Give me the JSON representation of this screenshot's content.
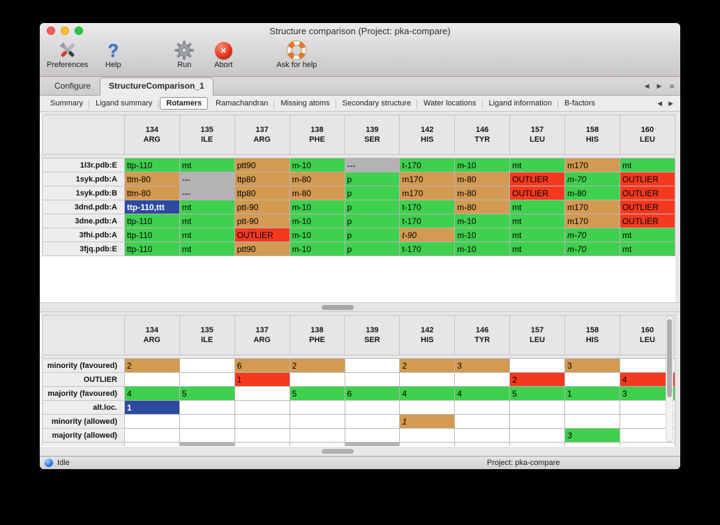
{
  "window": {
    "title": "Structure comparison (Project: pka-compare)"
  },
  "toolbar": {
    "items": [
      {
        "id": "preferences",
        "label": "Preferences"
      },
      {
        "id": "help",
        "label": "Help"
      },
      {
        "id": "run",
        "label": "Run"
      },
      {
        "id": "abort",
        "label": "Abort"
      },
      {
        "id": "ask-for-help",
        "label": "Ask for help"
      }
    ]
  },
  "tabs": {
    "items": [
      {
        "label": "Configure",
        "active": false
      },
      {
        "label": "StructureComparison_1",
        "active": true
      }
    ]
  },
  "tab_nav": {
    "prev": "◀",
    "next": "▶",
    "close": "×"
  },
  "subtabs": {
    "items": [
      {
        "label": "Summary",
        "active": false
      },
      {
        "label": "Ligand summary",
        "active": false
      },
      {
        "label": "Rotamers",
        "active": true
      },
      {
        "label": "Ramachandran",
        "active": false
      },
      {
        "label": "Missing atoms",
        "active": false
      },
      {
        "label": "Secondary structure",
        "active": false
      },
      {
        "label": "Water locations",
        "active": false
      },
      {
        "label": "Ligand information",
        "active": false
      },
      {
        "label": "B-factors",
        "active": false
      }
    ]
  },
  "colors": {
    "green": "#3fd04e",
    "orange": "#d39a51",
    "red": "#f5391f",
    "gray": "#b4b2b4",
    "blue": "#2c4a9e"
  },
  "columns": [
    {
      "num": "134",
      "res": "ARG"
    },
    {
      "num": "135",
      "res": "ILE"
    },
    {
      "num": "137",
      "res": "ARG"
    },
    {
      "num": "138",
      "res": "PHE"
    },
    {
      "num": "139",
      "res": "SER"
    },
    {
      "num": "142",
      "res": "HIS"
    },
    {
      "num": "146",
      "res": "TYR"
    },
    {
      "num": "157",
      "res": "LEU"
    },
    {
      "num": "158",
      "res": "HIS"
    },
    {
      "num": "160",
      "res": "LEU"
    }
  ],
  "top_table": {
    "rows": [
      {
        "label": "1l3r.pdb:E",
        "cells": [
          {
            "t": "ttp-110",
            "c": "green"
          },
          {
            "t": "mt",
            "c": "green"
          },
          {
            "t": "ptt90",
            "c": "orange"
          },
          {
            "t": "m-10",
            "c": "green"
          },
          {
            "t": "---",
            "c": "gray"
          },
          {
            "t": "t-170",
            "c": "green"
          },
          {
            "t": "m-10",
            "c": "green"
          },
          {
            "t": "mt",
            "c": "green"
          },
          {
            "t": "m170",
            "c": "orange"
          },
          {
            "t": "mt",
            "c": "green"
          }
        ]
      },
      {
        "label": "1syk.pdb:A",
        "cells": [
          {
            "t": "ttm-80",
            "c": "orange"
          },
          {
            "t": "---",
            "c": "gray"
          },
          {
            "t": "ttp80",
            "c": "orange"
          },
          {
            "t": "m-80",
            "c": "orange"
          },
          {
            "t": "p",
            "c": "green"
          },
          {
            "t": "m170",
            "c": "orange"
          },
          {
            "t": "m-80",
            "c": "orange"
          },
          {
            "t": "OUTLIER",
            "c": "red"
          },
          {
            "t": "m-70",
            "c": "green",
            "i": true
          },
          {
            "t": "OUTLIER",
            "c": "red"
          }
        ]
      },
      {
        "label": "1syk.pdb:B",
        "cells": [
          {
            "t": "ttm-80",
            "c": "orange"
          },
          {
            "t": "---",
            "c": "gray"
          },
          {
            "t": "ttp80",
            "c": "orange"
          },
          {
            "t": "m-80",
            "c": "orange"
          },
          {
            "t": "p",
            "c": "green"
          },
          {
            "t": "m170",
            "c": "orange"
          },
          {
            "t": "m-80",
            "c": "orange"
          },
          {
            "t": "OUTLIER",
            "c": "red"
          },
          {
            "t": "m-80",
            "c": "green"
          },
          {
            "t": "OUTLIER",
            "c": "red"
          }
        ]
      },
      {
        "label": "3dnd.pdb:A",
        "cells": [
          {
            "t": "ttp-110,ttt",
            "c": "blue"
          },
          {
            "t": "mt",
            "c": "green"
          },
          {
            "t": "ptt-90",
            "c": "orange"
          },
          {
            "t": "m-10",
            "c": "green"
          },
          {
            "t": "p",
            "c": "green"
          },
          {
            "t": "t-170",
            "c": "green"
          },
          {
            "t": "m-80",
            "c": "orange"
          },
          {
            "t": "mt",
            "c": "green"
          },
          {
            "t": "m170",
            "c": "orange"
          },
          {
            "t": "OUTLIER",
            "c": "red"
          }
        ]
      },
      {
        "label": "3dne.pdb:A",
        "cells": [
          {
            "t": "ttp-110",
            "c": "green"
          },
          {
            "t": "mt",
            "c": "green"
          },
          {
            "t": "ptt-90",
            "c": "orange"
          },
          {
            "t": "m-10",
            "c": "green"
          },
          {
            "t": "p",
            "c": "green"
          },
          {
            "t": "t-170",
            "c": "green"
          },
          {
            "t": "m-10",
            "c": "green"
          },
          {
            "t": "mt",
            "c": "green"
          },
          {
            "t": "m170",
            "c": "orange"
          },
          {
            "t": "OUTLIER",
            "c": "red"
          }
        ]
      },
      {
        "label": "3fhi.pdb:A",
        "cells": [
          {
            "t": "ttp-110",
            "c": "green"
          },
          {
            "t": "mt",
            "c": "green"
          },
          {
            "t": "OUTLIER",
            "c": "red"
          },
          {
            "t": "m-10",
            "c": "green"
          },
          {
            "t": "p",
            "c": "green"
          },
          {
            "t": "t-90",
            "c": "orange",
            "i": true
          },
          {
            "t": "m-10",
            "c": "green"
          },
          {
            "t": "mt",
            "c": "green"
          },
          {
            "t": "m-70",
            "c": "green",
            "i": true
          },
          {
            "t": "mt",
            "c": "green"
          }
        ]
      },
      {
        "label": "3fjq.pdb:E",
        "cells": [
          {
            "t": "ttp-110",
            "c": "green"
          },
          {
            "t": "mt",
            "c": "green"
          },
          {
            "t": "ptt90",
            "c": "orange"
          },
          {
            "t": "m-10",
            "c": "green"
          },
          {
            "t": "p",
            "c": "green"
          },
          {
            "t": "t-170",
            "c": "green"
          },
          {
            "t": "m-10",
            "c": "green"
          },
          {
            "t": "mt",
            "c": "green"
          },
          {
            "t": "m-70",
            "c": "green",
            "i": true
          },
          {
            "t": "mt",
            "c": "green"
          }
        ]
      }
    ]
  },
  "bottom_table": {
    "rows": [
      {
        "label": "minority (favoured)",
        "cells": [
          {
            "t": "2",
            "c": "orange"
          },
          {
            "t": "",
            "c": ""
          },
          {
            "t": "6",
            "c": "orange"
          },
          {
            "t": "2",
            "c": "orange"
          },
          {
            "t": "",
            "c": ""
          },
          {
            "t": "2",
            "c": "orange"
          },
          {
            "t": "3",
            "c": "orange"
          },
          {
            "t": "",
            "c": ""
          },
          {
            "t": "3",
            "c": "orange"
          },
          {
            "t": "",
            "c": ""
          }
        ]
      },
      {
        "label": "OUTLIER",
        "cells": [
          {
            "t": "",
            "c": ""
          },
          {
            "t": "",
            "c": ""
          },
          {
            "t": "1",
            "c": "red"
          },
          {
            "t": "",
            "c": ""
          },
          {
            "t": "",
            "c": ""
          },
          {
            "t": "",
            "c": ""
          },
          {
            "t": "",
            "c": ""
          },
          {
            "t": "2",
            "c": "red"
          },
          {
            "t": "",
            "c": ""
          },
          {
            "t": "4",
            "c": "red"
          }
        ]
      },
      {
        "label": "majority (favoured)",
        "cells": [
          {
            "t": "4",
            "c": "green"
          },
          {
            "t": "5",
            "c": "green"
          },
          {
            "t": "",
            "c": ""
          },
          {
            "t": "5",
            "c": "green"
          },
          {
            "t": "6",
            "c": "green"
          },
          {
            "t": "4",
            "c": "green"
          },
          {
            "t": "4",
            "c": "green"
          },
          {
            "t": "5",
            "c": "green"
          },
          {
            "t": "1",
            "c": "green"
          },
          {
            "t": "3",
            "c": "green"
          }
        ]
      },
      {
        "label": "alt.loc.",
        "cells": [
          {
            "t": "1",
            "c": "blue"
          },
          {
            "t": "",
            "c": ""
          },
          {
            "t": "",
            "c": ""
          },
          {
            "t": "",
            "c": ""
          },
          {
            "t": "",
            "c": ""
          },
          {
            "t": "",
            "c": ""
          },
          {
            "t": "",
            "c": ""
          },
          {
            "t": "",
            "c": ""
          },
          {
            "t": "",
            "c": ""
          },
          {
            "t": "",
            "c": ""
          }
        ]
      },
      {
        "label": "minority (allowed)",
        "cells": [
          {
            "t": "",
            "c": ""
          },
          {
            "t": "",
            "c": ""
          },
          {
            "t": "",
            "c": ""
          },
          {
            "t": "",
            "c": ""
          },
          {
            "t": "",
            "c": ""
          },
          {
            "t": "1",
            "c": "orange",
            "i": true
          },
          {
            "t": "",
            "c": ""
          },
          {
            "t": "",
            "c": ""
          },
          {
            "t": "",
            "c": ""
          },
          {
            "t": "",
            "c": ""
          }
        ]
      },
      {
        "label": "majority (allowed)",
        "cells": [
          {
            "t": "",
            "c": ""
          },
          {
            "t": "",
            "c": ""
          },
          {
            "t": "",
            "c": ""
          },
          {
            "t": "",
            "c": ""
          },
          {
            "t": "",
            "c": ""
          },
          {
            "t": "",
            "c": ""
          },
          {
            "t": "",
            "c": ""
          },
          {
            "t": "",
            "c": ""
          },
          {
            "t": "3",
            "c": "green",
            "i": true
          },
          {
            "t": "",
            "c": ""
          }
        ]
      }
    ],
    "partial_gray_cols": [
      1,
      4
    ]
  },
  "statusbar": {
    "status": "Idle",
    "project": "Project: pka-compare"
  }
}
